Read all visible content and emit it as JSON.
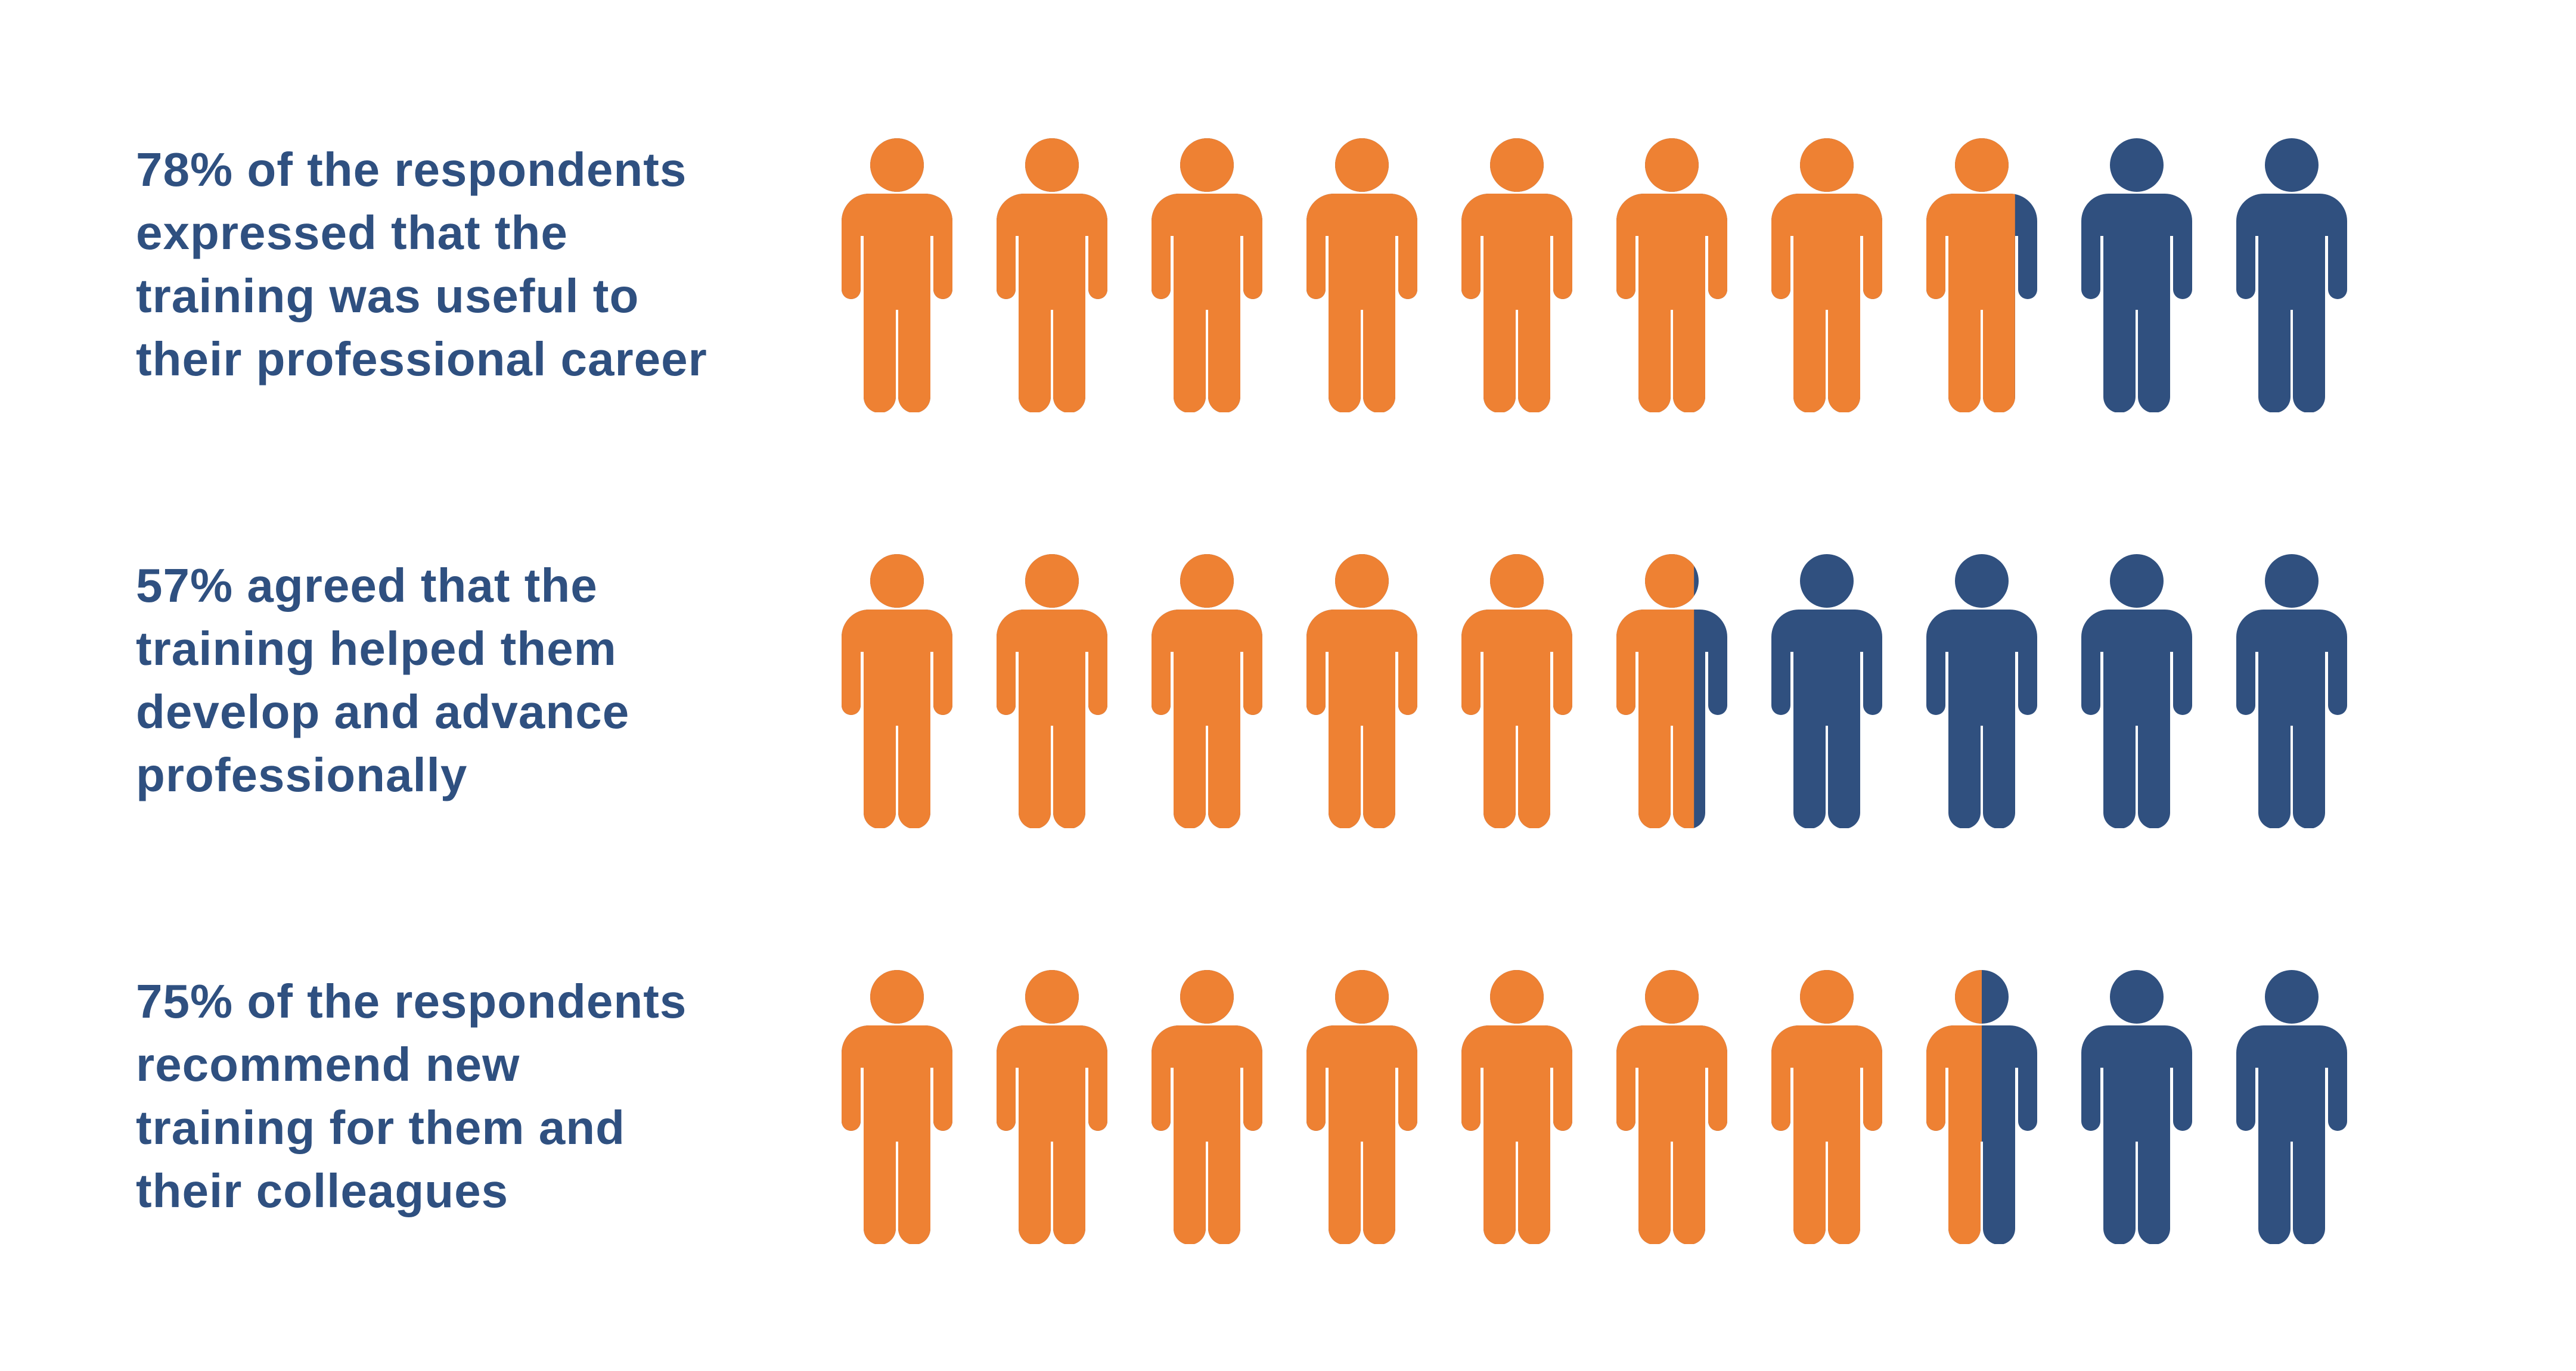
{
  "colors": {
    "text": "#2f5080",
    "filled": "#ee8133",
    "unfilled": "#30507f",
    "background": "#ffffff"
  },
  "chart_data": {
    "type": "pictogram",
    "icon": "person-icon",
    "icons_per_row": 10,
    "rows": [
      {
        "value": 78,
        "lines": [
          "78% of the respondents",
          "expressed that the",
          "training was useful to",
          "their professional career"
        ]
      },
      {
        "value": 57,
        "lines": [
          "57% agreed that the",
          "training helped them",
          "develop and advance",
          "professionally"
        ]
      },
      {
        "value": 75,
        "lines": [
          "75% of the respondents",
          "recommend new",
          "training for them and",
          "their colleagues"
        ]
      }
    ]
  }
}
